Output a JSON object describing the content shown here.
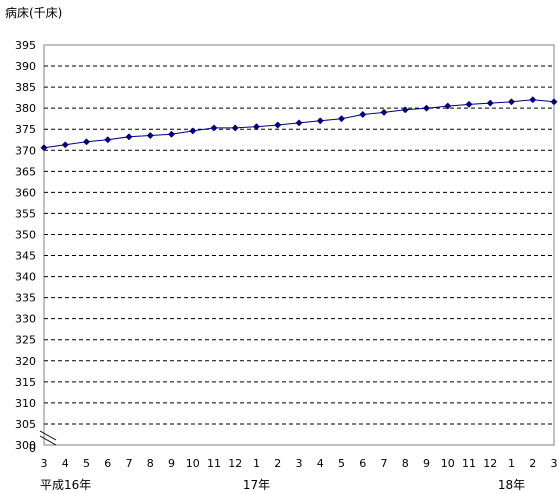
{
  "chart_data": {
    "type": "line",
    "ylabel": "病床(千床)",
    "ylim": [
      300,
      395
    ],
    "yticks": [
      395,
      390,
      385,
      380,
      375,
      370,
      365,
      360,
      355,
      350,
      345,
      340,
      335,
      330,
      325,
      320,
      315,
      310,
      305,
      300
    ],
    "ybaseline_label": "0",
    "axis_break": true,
    "grid": "dashed horizontal",
    "x_tick_labels": [
      "3",
      "4",
      "5",
      "6",
      "7",
      "8",
      "9",
      "10",
      "11",
      "12",
      "1",
      "2",
      "3",
      "4",
      "5",
      "6",
      "7",
      "8",
      "9",
      "10",
      "11",
      "12",
      "1",
      "2",
      "3"
    ],
    "year_labels": [
      {
        "label": "平成16年",
        "at_index": 0
      },
      {
        "label": "17年",
        "at_index": 10
      },
      {
        "label": "18年",
        "at_index": 22
      }
    ],
    "series": [
      {
        "color": "#000080",
        "values": [
          370.6,
          371.3,
          372.0,
          372.5,
          373.2,
          373.5,
          373.8,
          374.6,
          375.3,
          375.3,
          375.6,
          376.0,
          376.5,
          377.0,
          377.5,
          378.5,
          379.0,
          379.6,
          380.0,
          380.5,
          380.9,
          381.2,
          381.5,
          382.0,
          381.5
        ]
      }
    ]
  }
}
